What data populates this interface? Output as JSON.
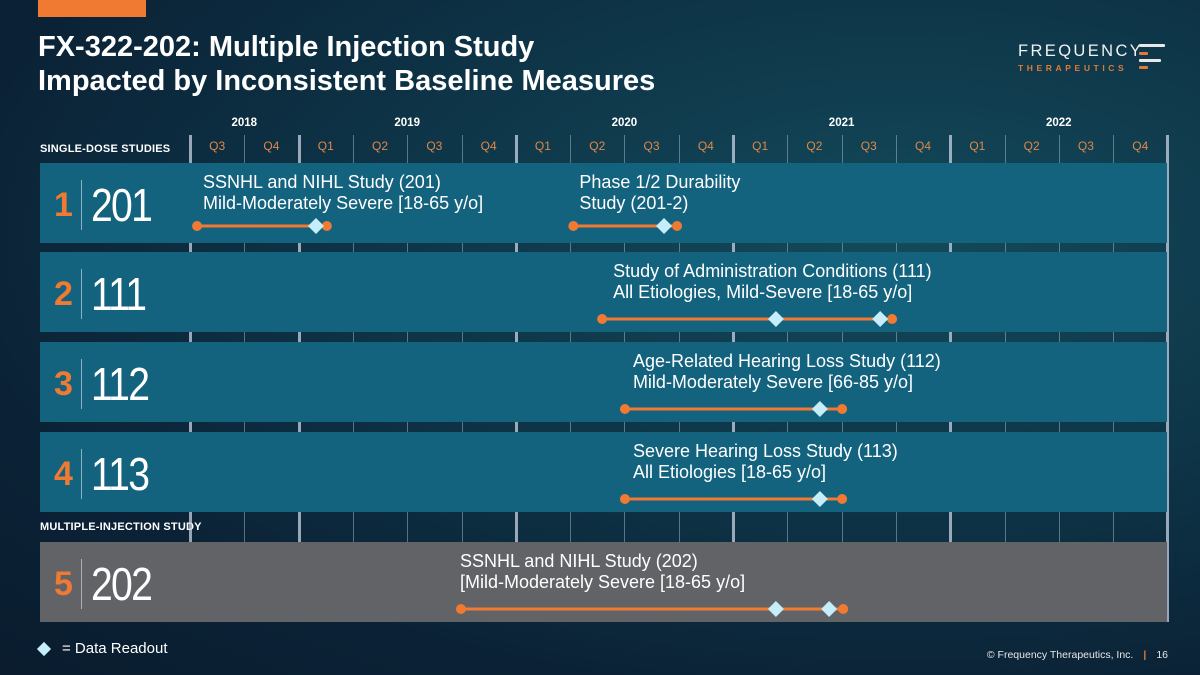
{
  "slide": {
    "title_line1": "FX-322-202: Multiple Injection Study",
    "title_line2": "Impacted by Inconsistent Baseline Measures",
    "logo": {
      "name": "FREQUENCY",
      "sub": "THERAPEUTICS"
    },
    "section_single": "SINGLE-DOSE STUDIES",
    "section_multi": "MULTIPLE-INJECTION STUDY",
    "legend": {
      "icon": "diamond-icon",
      "label": "= Data Readout"
    },
    "footer": {
      "copyright": "© Frequency Therapeutics, Inc.",
      "separator": "|",
      "page": "16"
    }
  },
  "colors": {
    "accent_orange": "#f07a32",
    "band_blue": "#13627e",
    "band_gray": "#626367",
    "readout_diamond": "#c5eefa",
    "quarter_label": "#e0884a"
  },
  "chart_data": {
    "type": "gantt-timeline",
    "title": "FX-322-202: Multiple Injection Study Impacted by Inconsistent Baseline Measures",
    "years": [
      {
        "label": "2018",
        "quarters": [
          "Q3",
          "Q4"
        ]
      },
      {
        "label": "2019",
        "quarters": [
          "Q1",
          "Q2",
          "Q3",
          "Q4"
        ]
      },
      {
        "label": "2020",
        "quarters": [
          "Q1",
          "Q2",
          "Q3",
          "Q4"
        ]
      },
      {
        "label": "2021",
        "quarters": [
          "Q1",
          "Q2",
          "Q3",
          "Q4"
        ]
      },
      {
        "label": "2022",
        "quarters": [
          "Q1",
          "Q2",
          "Q3",
          "Q4"
        ]
      }
    ],
    "quarter_labels": [
      "Q3",
      "Q4",
      "Q1",
      "Q2",
      "Q3",
      "Q4",
      "Q1",
      "Q2",
      "Q3",
      "Q4",
      "Q1",
      "Q2",
      "Q3",
      "Q4",
      "Q1",
      "Q2",
      "Q3",
      "Q4"
    ],
    "time_unit": "quarters elapsed since start of 2018 Q3",
    "legend": "bottom-left",
    "rows": [
      {
        "num": "1",
        "code": "201",
        "group": "single-dose",
        "color": "blue",
        "studies": [
          {
            "lines": [
              "SSNHL and NIHL Study (201)",
              "Mild-Moderately Severe [18-65 y/o]"
            ],
            "start": 0.13,
            "end": 2.52,
            "readouts": [
              2.32
            ]
          },
          {
            "lines": [
              "Phase 1/2 Durability",
              "Study (201-2)"
            ],
            "start": 7.06,
            "end": 8.97,
            "readouts": [
              8.73
            ]
          }
        ]
      },
      {
        "num": "2",
        "code": "111",
        "group": "single-dose",
        "color": "blue",
        "studies": [
          {
            "lines": [
              "Study of Administration Conditions (111)",
              "All Etiologies, Mild-Severe [18-65 y/o]"
            ],
            "start": 7.59,
            "end": 12.93,
            "readouts": [
              10.79,
              12.71
            ]
          }
        ]
      },
      {
        "num": "3",
        "code": "112",
        "group": "single-dose",
        "color": "blue",
        "studies": [
          {
            "lines": [
              "Age-Related Hearing Loss Study (112)",
              "Mild-Moderately Severe [66-85 y/o]"
            ],
            "start": 8.01,
            "end": 12.01,
            "readouts": [
              11.6
            ]
          }
        ]
      },
      {
        "num": "4",
        "code": "113",
        "group": "single-dose",
        "color": "blue",
        "studies": [
          {
            "lines": [
              "Severe Hearing Loss Study (113)",
              "All Etiologies [18-65 y/o]"
            ],
            "start": 8.01,
            "end": 12.01,
            "readouts": [
              11.6
            ]
          }
        ]
      },
      {
        "num": "5",
        "code": "202",
        "group": "multiple-injection",
        "color": "gray",
        "studies": [
          {
            "lines": [
              "SSNHL and NIHL Study (202)",
              "[Mild-Moderately Severe [18-65 y/o]"
            ],
            "start": 4.99,
            "end": 12.03,
            "readouts": [
              10.79,
              11.77
            ]
          }
        ]
      }
    ]
  }
}
